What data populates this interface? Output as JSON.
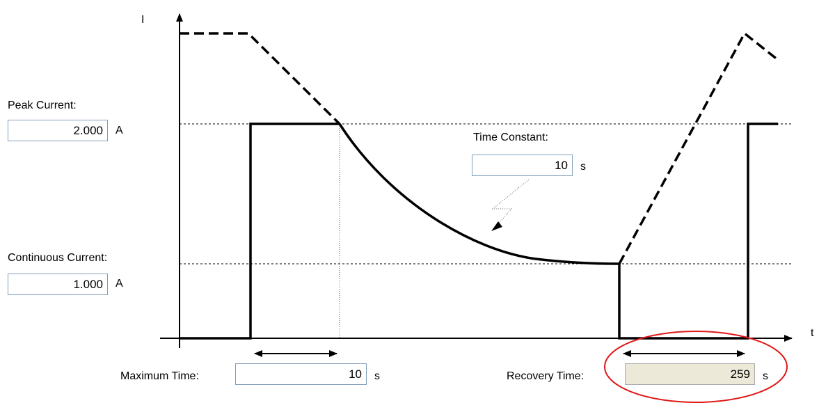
{
  "axes": {
    "y_label": "I",
    "x_label": "t"
  },
  "peak_current": {
    "label": "Peak Current:",
    "value": "2.000",
    "unit": "A"
  },
  "continuous_current": {
    "label": "Continuous Current:",
    "value": "1.000",
    "unit": "A"
  },
  "time_constant": {
    "label": "Time Constant:",
    "value": "10",
    "unit": "s"
  },
  "maximum_time": {
    "label": "Maximum Time:",
    "value": "10",
    "unit": "s"
  },
  "recovery_time": {
    "label": "Recovery Time:",
    "value": "259",
    "unit": "s"
  },
  "colors": {
    "highlight_ellipse": "#e01818",
    "readonly_field": "#ece9d8",
    "field_border": "#7f9db9"
  }
}
